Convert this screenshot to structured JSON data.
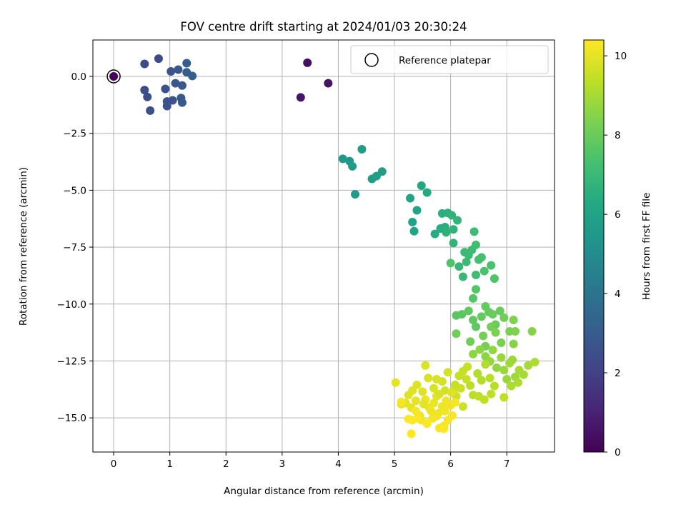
{
  "chart_data": {
    "type": "scatter",
    "title": "FOV centre drift starting at 2024/01/03 20:30:24",
    "xlabel": "Angular distance from reference (arcmin)",
    "ylabel": "Rotation from reference (arcmin)",
    "xlim": [
      -0.37,
      7.85
    ],
    "ylim": [
      -16.5,
      1.6
    ],
    "xticks": [
      0,
      1,
      2,
      3,
      4,
      5,
      6,
      7
    ],
    "yticks": [
      0.0,
      -2.5,
      -5.0,
      -7.5,
      -10.0,
      -12.5,
      -15.0
    ],
    "xtick_labels": [
      "0",
      "1",
      "2",
      "3",
      "4",
      "5",
      "6",
      "7"
    ],
    "ytick_labels": [
      "0.0",
      "−2.5",
      "−5.0",
      "−7.5",
      "−10.0",
      "−12.5",
      "−15.0"
    ],
    "grid": true,
    "legend": {
      "placement": "top-right",
      "entries": [
        "Reference platepar"
      ]
    },
    "reference_point": {
      "x": 0,
      "y": 0
    },
    "colorbar": {
      "label": "Hours from first FF file",
      "range": [
        0,
        10.4
      ],
      "ticks": [
        0,
        2,
        4,
        6,
        8,
        10
      ],
      "tick_labels": [
        "0",
        "2",
        "4",
        "6",
        "8",
        "10"
      ],
      "colormap": "viridis"
    },
    "points": [
      [
        0.0,
        0.0,
        0.05
      ],
      [
        3.45,
        0.6,
        0.4
      ],
      [
        3.82,
        -0.3,
        0.5
      ],
      [
        3.33,
        -0.92,
        0.6
      ],
      [
        0.55,
        0.55,
        2.4
      ],
      [
        0.8,
        0.78,
        2.4
      ],
      [
        0.55,
        -0.6,
        2.5
      ],
      [
        0.6,
        -0.9,
        2.5
      ],
      [
        0.65,
        -1.5,
        2.5
      ],
      [
        0.92,
        -0.55,
        2.6
      ],
      [
        0.95,
        -1.1,
        2.6
      ],
      [
        0.95,
        -1.3,
        2.6
      ],
      [
        1.02,
        0.22,
        2.7
      ],
      [
        1.05,
        -1.05,
        2.7
      ],
      [
        1.1,
        -0.3,
        2.8
      ],
      [
        1.15,
        0.3,
        2.8
      ],
      [
        1.2,
        -0.95,
        2.9
      ],
      [
        1.22,
        -0.4,
        2.9
      ],
      [
        1.22,
        -1.15,
        2.9
      ],
      [
        1.3,
        0.58,
        3.0
      ],
      [
        1.3,
        0.18,
        3.0
      ],
      [
        1.4,
        0.02,
        3.1
      ],
      [
        4.08,
        -3.62,
        5.5
      ],
      [
        4.2,
        -3.72,
        5.5
      ],
      [
        4.25,
        -3.95,
        5.6
      ],
      [
        4.3,
        -5.18,
        5.6
      ],
      [
        4.42,
        -3.2,
        5.7
      ],
      [
        4.6,
        -4.5,
        5.7
      ],
      [
        4.68,
        -4.38,
        5.8
      ],
      [
        4.78,
        -4.18,
        5.8
      ],
      [
        5.28,
        -5.35,
        6.0
      ],
      [
        5.32,
        -6.4,
        6.0
      ],
      [
        5.35,
        -6.8,
        6.1
      ],
      [
        5.4,
        -5.88,
        6.1
      ],
      [
        5.48,
        -4.8,
        6.2
      ],
      [
        5.58,
        -5.1,
        6.3
      ],
      [
        5.72,
        -6.92,
        6.4
      ],
      [
        5.82,
        -6.68,
        6.4
      ],
      [
        5.85,
        -6.02,
        6.5
      ],
      [
        5.9,
        -6.62,
        6.5
      ],
      [
        5.92,
        -6.85,
        6.6
      ],
      [
        5.95,
        -6.0,
        6.6
      ],
      [
        6.02,
        -6.1,
        6.7
      ],
      [
        6.05,
        -6.72,
        6.7
      ],
      [
        6.05,
        -7.32,
        6.8
      ],
      [
        6.12,
        -6.32,
        6.8
      ],
      [
        6.15,
        -8.35,
        6.9
      ],
      [
        6.22,
        -8.8,
        6.9
      ],
      [
        6.25,
        -7.72,
        7.0
      ],
      [
        6.28,
        -8.15,
        7.0
      ],
      [
        6.32,
        -7.85,
        7.0
      ],
      [
        6.38,
        -7.62,
        7.1
      ],
      [
        6.42,
        -6.82,
        7.1
      ],
      [
        6.45,
        -7.4,
        7.2
      ],
      [
        6.45,
        -8.72,
        7.2
      ],
      [
        6.5,
        -8.05,
        7.3
      ],
      [
        6.55,
        -7.95,
        7.3
      ],
      [
        6.6,
        -8.55,
        7.4
      ],
      [
        6.72,
        -8.3,
        7.4
      ],
      [
        6.78,
        -8.88,
        7.5
      ],
      [
        6.0,
        -8.2,
        7.5
      ],
      [
        6.45,
        -9.35,
        7.6
      ],
      [
        6.4,
        -9.75,
        7.6
      ],
      [
        6.1,
        -10.5,
        7.7
      ],
      [
        6.2,
        -10.45,
        7.7
      ],
      [
        6.32,
        -10.3,
        7.8
      ],
      [
        6.4,
        -10.7,
        7.8
      ],
      [
        6.45,
        -11.0,
        7.8
      ],
      [
        6.55,
        -10.55,
        7.9
      ],
      [
        6.62,
        -10.1,
        7.9
      ],
      [
        6.68,
        -10.35,
        7.9
      ],
      [
        6.75,
        -10.45,
        8.0
      ],
      [
        6.8,
        -10.9,
        8.0
      ],
      [
        6.88,
        -10.3,
        8.0
      ],
      [
        6.95,
        -10.6,
        8.1
      ],
      [
        6.1,
        -11.3,
        8.1
      ],
      [
        6.35,
        -11.65,
        8.1
      ],
      [
        6.58,
        -11.4,
        8.2
      ],
      [
        6.62,
        -11.85,
        8.2
      ],
      [
        6.72,
        -11.0,
        8.2
      ],
      [
        6.8,
        -11.25,
        8.3
      ],
      [
        6.9,
        -11.7,
        8.3
      ],
      [
        7.05,
        -11.2,
        8.3
      ],
      [
        7.12,
        -10.7,
        8.4
      ],
      [
        7.15,
        -11.2,
        8.4
      ],
      [
        7.12,
        -11.75,
        8.5
      ],
      [
        7.45,
        -11.2,
        8.5
      ],
      [
        6.4,
        -12.2,
        8.6
      ],
      [
        6.52,
        -12.0,
        8.6
      ],
      [
        6.62,
        -12.3,
        8.6
      ],
      [
        6.7,
        -12.52,
        8.7
      ],
      [
        6.75,
        -12.02,
        8.7
      ],
      [
        6.82,
        -12.8,
        8.7
      ],
      [
        6.9,
        -12.35,
        8.8
      ],
      [
        6.95,
        -12.9,
        8.8
      ],
      [
        7.0,
        -13.3,
        8.8
      ],
      [
        7.05,
        -12.6,
        8.9
      ],
      [
        7.1,
        -12.45,
        8.9
      ],
      [
        7.15,
        -13.2,
        8.9
      ],
      [
        7.22,
        -12.9,
        9.0
      ],
      [
        7.3,
        -13.1,
        9.0
      ],
      [
        7.38,
        -12.7,
        9.0
      ],
      [
        7.5,
        -12.55,
        9.1
      ],
      [
        7.08,
        -13.6,
        9.1
      ],
      [
        7.2,
        -13.45,
        9.1
      ],
      [
        6.48,
        -13.05,
        9.2
      ],
      [
        6.55,
        -13.35,
        9.2
      ],
      [
        6.62,
        -12.65,
        9.2
      ],
      [
        6.7,
        -13.25,
        9.3
      ],
      [
        6.78,
        -13.6,
        9.3
      ],
      [
        6.35,
        -13.58,
        9.3
      ],
      [
        6.4,
        -14.0,
        9.3
      ],
      [
        6.5,
        -14.05,
        9.4
      ],
      [
        6.6,
        -14.2,
        9.4
      ],
      [
        6.72,
        -13.95,
        9.4
      ],
      [
        6.95,
        -14.1,
        9.4
      ],
      [
        6.08,
        -13.55,
        9.5
      ],
      [
        6.15,
        -13.15,
        9.5
      ],
      [
        6.22,
        -12.95,
        9.5
      ],
      [
        6.3,
        -12.75,
        9.5
      ],
      [
        6.05,
        -13.8,
        9.6
      ],
      [
        6.22,
        -14.5,
        9.6
      ],
      [
        6.1,
        -14.05,
        9.6
      ],
      [
        5.9,
        -13.8,
        9.7
      ],
      [
        5.95,
        -13.0,
        9.7
      ],
      [
        5.85,
        -13.4,
        9.7
      ],
      [
        5.75,
        -13.3,
        9.8
      ],
      [
        5.7,
        -13.7,
        9.8
      ],
      [
        5.6,
        -13.25,
        9.8
      ],
      [
        5.55,
        -12.7,
        9.8
      ],
      [
        5.5,
        -13.85,
        9.9
      ],
      [
        5.4,
        -13.55,
        9.9
      ],
      [
        5.32,
        -13.8,
        9.9
      ],
      [
        5.25,
        -14.0,
        9.9
      ],
      [
        5.2,
        -14.35,
        10.0
      ],
      [
        5.12,
        -14.4,
        10.0
      ],
      [
        5.02,
        -13.45,
        10.0
      ],
      [
        5.3,
        -14.55,
        10.0
      ],
      [
        5.38,
        -14.25,
        10.0
      ],
      [
        5.45,
        -14.9,
        10.1
      ],
      [
        5.55,
        -14.2,
        10.1
      ],
      [
        5.62,
        -14.55,
        10.1
      ],
      [
        5.7,
        -14.35,
        10.1
      ],
      [
        5.78,
        -14.8,
        10.1
      ],
      [
        5.85,
        -14.5,
        10.1
      ],
      [
        5.92,
        -14.25,
        10.2
      ],
      [
        6.0,
        -14.45,
        10.2
      ],
      [
        5.48,
        -15.1,
        10.2
      ],
      [
        5.58,
        -15.25,
        10.2
      ],
      [
        5.68,
        -15.02,
        10.2
      ],
      [
        5.75,
        -14.92,
        10.2
      ],
      [
        5.88,
        -15.35,
        10.3
      ],
      [
        5.95,
        -15.1,
        10.3
      ],
      [
        6.03,
        -14.9,
        10.3
      ],
      [
        6.08,
        -14.32,
        10.3
      ],
      [
        5.8,
        -15.45,
        10.3
      ],
      [
        5.88,
        -15.48,
        10.35
      ],
      [
        5.32,
        -15.1,
        10.35
      ],
      [
        5.42,
        -15.02,
        10.35
      ],
      [
        5.25,
        -15.05,
        10.35
      ],
      [
        5.58,
        -15.22,
        10.35
      ],
      [
        5.3,
        -15.7,
        10.4
      ],
      [
        5.75,
        -14.05,
        10.0
      ],
      [
        5.65,
        -14.7,
        10.1
      ],
      [
        5.52,
        -14.4,
        10.0
      ],
      [
        5.9,
        -14.7,
        10.2
      ],
      [
        6.02,
        -13.9,
        9.9
      ],
      [
        5.38,
        -14.7,
        10.3
      ],
      [
        5.12,
        -14.3,
        10.3
      ],
      [
        5.8,
        -13.95,
        9.8
      ],
      [
        6.18,
        -13.7,
        9.6
      ],
      [
        6.28,
        -13.3,
        9.5
      ]
    ]
  }
}
